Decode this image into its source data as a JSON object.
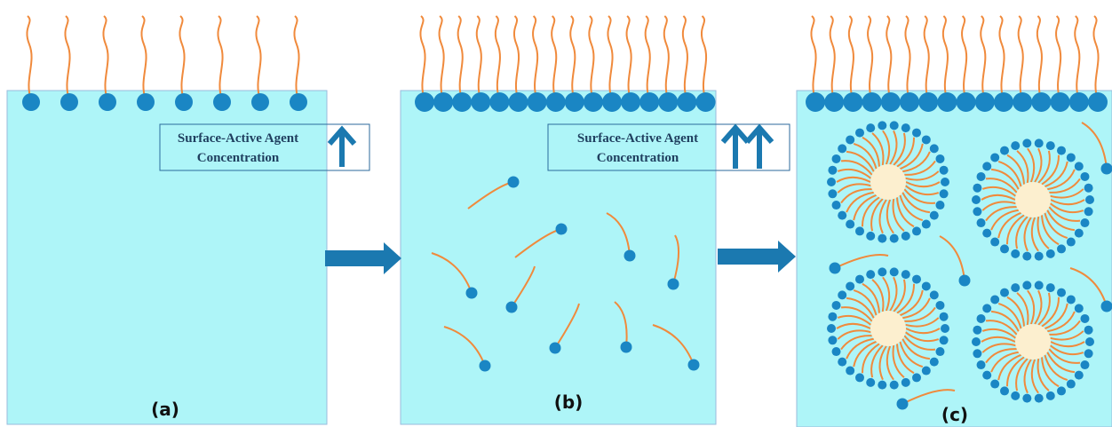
{
  "panels": [
    {
      "label": "(a)",
      "box": {
        "line1": "Surface-Active Agent",
        "line2": "Concentration"
      }
    },
    {
      "label": "(b)",
      "box": {
        "line1": "Surface-Active Agent",
        "line2": "Concentration"
      }
    },
    {
      "label": "(c)"
    }
  ]
}
